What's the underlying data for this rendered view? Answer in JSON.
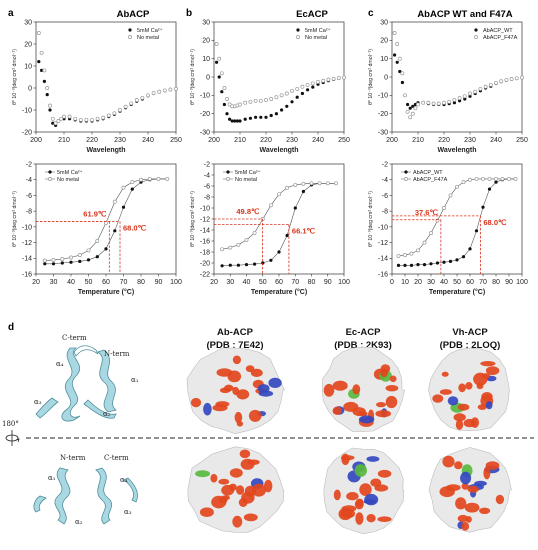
{
  "panel_labels": {
    "a": "a",
    "b": "b",
    "c": "c",
    "d": "d"
  },
  "colors": {
    "filled": "#111111",
    "open": "#9a9a9a",
    "annotation": "#d9331c",
    "ribbon": "#a9d8e2",
    "ribbon_edge": "#4e8f9c",
    "surface": "#e9e9e9",
    "acidic": "#e2461d",
    "basic": "#3348bf",
    "other": "#58b83e"
  },
  "icons": {
    "rotate": "rotate-arrow-icon"
  },
  "chart_data": [
    {
      "id": "a-cd",
      "type": "scatter",
      "title": "AbACP",
      "xlabel": "Wavelength",
      "ylabel": "θ* 10⁻³(deg cm² dmol⁻¹)",
      "xlim": [
        200,
        250
      ],
      "ylim": [
        -20,
        30
      ],
      "xticks": [
        200,
        210,
        220,
        230,
        240,
        250
      ],
      "yticks": [
        -20,
        -10,
        0,
        10,
        20,
        30
      ],
      "legend_loc": "top-right",
      "series": [
        {
          "name": "5mM Ca²⁺",
          "marker": "filled",
          "x": [
            201,
            202,
            203,
            204,
            205,
            206,
            207,
            208,
            209,
            210,
            212,
            214,
            216,
            218,
            220,
            222,
            224,
            226,
            228,
            230,
            232,
            234,
            236,
            238,
            240,
            242,
            244,
            246,
            248,
            250
          ],
          "y": [
            12,
            8,
            3,
            -3,
            -10,
            -16,
            -17,
            -15,
            -14,
            -14,
            -14,
            -14.5,
            -15,
            -15,
            -15,
            -14.5,
            -14,
            -13,
            -12,
            -10.5,
            -9,
            -7.5,
            -6,
            -5,
            -3.5,
            -2.5,
            -1.8,
            -1.2,
            -0.8,
            -0.4
          ]
        },
        {
          "name": "No metal",
          "marker": "open",
          "x": [
            201,
            202,
            203,
            204,
            205,
            206,
            207,
            208,
            209,
            210,
            212,
            214,
            216,
            218,
            220,
            222,
            224,
            226,
            228,
            230,
            232,
            234,
            236,
            238,
            240,
            242,
            244,
            246,
            248,
            250
          ],
          "y": [
            25,
            16,
            8,
            0,
            -8,
            -14,
            -16,
            -15,
            -14,
            -13,
            -13,
            -14,
            -14.5,
            -14.5,
            -14.5,
            -14,
            -13.5,
            -12.5,
            -11.5,
            -10,
            -8.5,
            -7,
            -5.5,
            -4.5,
            -3.3,
            -2.3,
            -1.7,
            -1.1,
            -0.7,
            -0.3
          ]
        }
      ]
    },
    {
      "id": "b-cd",
      "type": "scatter",
      "title": "EcACP",
      "xlabel": "Wavelength",
      "ylabel": "θ* 10⁻³(deg cm² dmol⁻¹)",
      "xlim": [
        200,
        250
      ],
      "ylim": [
        -30,
        30
      ],
      "xticks": [
        200,
        210,
        220,
        230,
        240,
        250
      ],
      "yticks": [
        -30,
        -20,
        -10,
        0,
        10,
        20,
        30
      ],
      "legend_loc": "top-right",
      "series": [
        {
          "name": "5mM Ca²⁺",
          "marker": "filled",
          "x": [
            201,
            202,
            203,
            204,
            205,
            206,
            207,
            208,
            209,
            210,
            212,
            214,
            216,
            218,
            220,
            222,
            224,
            226,
            228,
            230,
            232,
            234,
            236,
            238,
            240,
            242,
            244,
            246,
            248,
            250
          ],
          "y": [
            8,
            0,
            -8,
            -15,
            -20,
            -23,
            -24,
            -24,
            -24,
            -24,
            -23,
            -22.5,
            -22,
            -22,
            -22,
            -21,
            -20,
            -18,
            -16,
            -13.5,
            -11,
            -9,
            -7,
            -5.5,
            -4,
            -3,
            -2,
            -1.3,
            -0.8,
            -0.4
          ]
        },
        {
          "name": "No metal",
          "marker": "open",
          "x": [
            201,
            202,
            203,
            204,
            205,
            206,
            207,
            208,
            209,
            210,
            212,
            214,
            216,
            218,
            220,
            222,
            224,
            226,
            228,
            230,
            232,
            234,
            236,
            238,
            240,
            242,
            244,
            246,
            248,
            250
          ],
          "y": [
            18,
            10,
            2,
            -6,
            -12,
            -15,
            -16,
            -16,
            -15.5,
            -15,
            -14,
            -13.5,
            -13,
            -13,
            -12.5,
            -12,
            -11,
            -10,
            -9,
            -7.5,
            -6.5,
            -5.3,
            -4.3,
            -3.5,
            -2.7,
            -2,
            -1.4,
            -1,
            -0.6,
            -0.3
          ]
        }
      ]
    },
    {
      "id": "c-cd",
      "type": "scatter",
      "title": "AbACP WT and F47A",
      "xlabel": "Wavelength",
      "ylabel": "θ* 10⁻³(deg cm² dmol⁻¹)",
      "xlim": [
        200,
        250
      ],
      "ylim": [
        -30,
        30
      ],
      "xticks": [
        200,
        210,
        220,
        230,
        240,
        250
      ],
      "yticks": [
        -30,
        -20,
        -10,
        0,
        10,
        20,
        30
      ],
      "legend_loc": "top-right",
      "series": [
        {
          "name": "AbACP_WT",
          "marker": "filled",
          "x": [
            201,
            202,
            203,
            204,
            205,
            206,
            207,
            208,
            209,
            210,
            212,
            214,
            216,
            218,
            220,
            222,
            224,
            226,
            228,
            230,
            232,
            234,
            236,
            238,
            240,
            242,
            244,
            246,
            248,
            250
          ],
          "y": [
            12,
            8,
            3,
            -3,
            -10,
            -15,
            -17,
            -16,
            -15,
            -14,
            -14,
            -14.5,
            -15,
            -15,
            -15,
            -14.5,
            -14,
            -13,
            -12,
            -10.5,
            -9,
            -7.5,
            -6,
            -5,
            -3.5,
            -2.5,
            -1.8,
            -1.2,
            -0.8,
            -0.4
          ]
        },
        {
          "name": "AbACP_F47A",
          "marker": "open",
          "x": [
            201,
            202,
            203,
            204,
            205,
            206,
            207,
            208,
            209,
            210,
            212,
            214,
            216,
            218,
            220,
            222,
            224,
            226,
            228,
            230,
            232,
            234,
            236,
            238,
            240,
            242,
            244,
            246,
            248,
            250
          ],
          "y": [
            24,
            18,
            10,
            2,
            -10,
            -19,
            -22,
            -20,
            -17,
            -15,
            -14,
            -14,
            -14.5,
            -14.5,
            -14,
            -13.5,
            -12.5,
            -11.5,
            -10.5,
            -9,
            -8,
            -6.5,
            -5.3,
            -4.3,
            -3.2,
            -2.3,
            -1.6,
            -1.1,
            -0.7,
            -0.3
          ]
        }
      ]
    },
    {
      "id": "a-melt",
      "type": "scatter",
      "xlabel": "Temperature (°C)",
      "ylabel": "θ* 10⁻³(deg cm² dmol⁻¹)",
      "xlim": [
        20,
        100
      ],
      "ylim": [
        -16,
        -2
      ],
      "xticks": [
        20,
        30,
        40,
        50,
        60,
        70,
        80,
        90,
        100
      ],
      "yticks": [
        -16,
        -14,
        -12,
        -10,
        -8,
        -6,
        -4,
        -2
      ],
      "legend_loc": "top-left",
      "series": [
        {
          "name": "5mM Ca²⁺",
          "marker": "filled",
          "x": [
            25,
            30,
            35,
            40,
            45,
            50,
            55,
            60,
            65,
            70,
            75,
            80,
            85,
            90,
            95
          ],
          "y": [
            -14.7,
            -14.7,
            -14.6,
            -14.5,
            -14.4,
            -14.2,
            -13.8,
            -12.8,
            -10.5,
            -7.5,
            -5.2,
            -4.3,
            -4,
            -3.9,
            -3.9
          ]
        },
        {
          "name": "No metal",
          "marker": "open",
          "x": [
            25,
            30,
            35,
            40,
            45,
            50,
            55,
            60,
            65,
            70,
            75,
            80,
            85,
            90,
            95
          ],
          "y": [
            -14.3,
            -14.2,
            -14.1,
            -13.9,
            -13.6,
            -13,
            -11.8,
            -9.5,
            -6.8,
            -5,
            -4.3,
            -4,
            -3.9,
            -3.9,
            -3.9
          ]
        }
      ],
      "annotations": [
        {
          "text": "61.9℃",
          "x": 61.9,
          "y": -9.3
        },
        {
          "text": "68.0℃",
          "x": 68.0,
          "y": -9.3
        }
      ]
    },
    {
      "id": "b-melt",
      "type": "scatter",
      "xlabel": "Temperature (°C)",
      "ylabel": "θ* 10⁻³(deg cm² dmol⁻¹)",
      "xlim": [
        20,
        100
      ],
      "ylim": [
        -22,
        -2
      ],
      "xticks": [
        20,
        30,
        40,
        50,
        60,
        70,
        80,
        90,
        100
      ],
      "yticks": [
        -22,
        -20,
        -18,
        -16,
        -14,
        -12,
        -10,
        -8,
        -6,
        -4,
        -2
      ],
      "legend_loc": "top-left",
      "series": [
        {
          "name": "5mM Ca²⁺",
          "marker": "filled",
          "x": [
            25,
            30,
            35,
            40,
            45,
            50,
            55,
            60,
            65,
            70,
            75,
            80,
            85,
            90,
            95
          ],
          "y": [
            -20.5,
            -20.4,
            -20.4,
            -20.3,
            -20.2,
            -20,
            -19.5,
            -18,
            -15,
            -10,
            -7,
            -5.8,
            -5.5,
            -5.5,
            -5.5
          ]
        },
        {
          "name": "No metal",
          "marker": "open",
          "x": [
            25,
            30,
            35,
            40,
            45,
            50,
            55,
            60,
            65,
            70,
            75,
            80,
            85,
            90,
            95
          ],
          "y": [
            -17.5,
            -17.2,
            -16.7,
            -15.8,
            -14.5,
            -12,
            -9.5,
            -7.5,
            -6.3,
            -5.8,
            -5.6,
            -5.5,
            -5.5,
            -5.5,
            -5.5
          ]
        }
      ],
      "annotations": [
        {
          "text": "49.8℃",
          "x": 49.8,
          "y": -12
        },
        {
          "text": "66.1℃",
          "x": 66.1,
          "y": -13
        }
      ]
    },
    {
      "id": "c-melt",
      "type": "scatter",
      "xlabel": "Temperature (°C)",
      "ylabel": "θ* 10⁻³(deg cm² dmol⁻¹)",
      "xlim": [
        0,
        100
      ],
      "ylim": [
        -16,
        -2
      ],
      "xticks": [
        0,
        10,
        20,
        30,
        40,
        50,
        60,
        70,
        80,
        90,
        100
      ],
      "yticks": [
        -16,
        -14,
        -12,
        -10,
        -8,
        -6,
        -4,
        -2
      ],
      "legend_loc": "top-left",
      "series": [
        {
          "name": "AbACP_WT",
          "marker": "filled",
          "x": [
            5,
            10,
            15,
            20,
            25,
            30,
            35,
            40,
            45,
            50,
            55,
            60,
            65,
            70,
            75,
            80,
            85,
            90,
            95
          ],
          "y": [
            -14.9,
            -14.9,
            -14.9,
            -14.8,
            -14.8,
            -14.7,
            -14.6,
            -14.5,
            -14.4,
            -14.2,
            -13.8,
            -12.8,
            -10.5,
            -7.5,
            -5.2,
            -4.3,
            -4,
            -3.9,
            -3.9
          ]
        },
        {
          "name": "AbACP_F47A",
          "marker": "open",
          "x": [
            5,
            10,
            15,
            20,
            25,
            30,
            35,
            40,
            45,
            50,
            55,
            60,
            65,
            70,
            75,
            80,
            85,
            90,
            95
          ],
          "y": [
            -13.7,
            -13.6,
            -13.4,
            -13,
            -12,
            -10.8,
            -9.2,
            -7.6,
            -6,
            -4.9,
            -4.3,
            -4,
            -3.9,
            -3.9,
            -3.9,
            -3.9,
            -3.9,
            -3.9,
            -3.9
          ]
        }
      ],
      "annotations": [
        {
          "text": "37.6℃",
          "x": 37.6,
          "y": -9.1
        },
        {
          "text": "68.0℃",
          "x": 68.0,
          "y": -8.6
        }
      ]
    }
  ],
  "structure": {
    "labels": {
      "c_term": "C-term",
      "n_term": "N-term",
      "a1": "α₁",
      "a2": "α₂",
      "a3": "α₃",
      "a4": "α₄"
    },
    "rotation": "180°",
    "surface_titles": [
      {
        "name": "Ab-ACP",
        "pdb": "(PDB : 7E42)"
      },
      {
        "name": "Ec-ACP",
        "pdb": "(PDB : 2K93)"
      },
      {
        "name": "Vh-ACP",
        "pdb": "(PDB : 2LOQ)"
      }
    ]
  }
}
